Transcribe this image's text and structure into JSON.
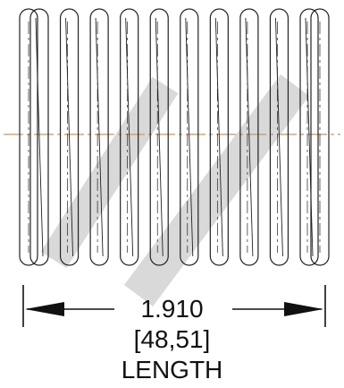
{
  "spring": {
    "coil_count": 10,
    "wire_color": "#222222",
    "centerline_color": "#c8946a",
    "watermark_color": "#d9d9d9"
  },
  "dimension": {
    "value": "1.910",
    "metric": "[48,51]",
    "label": "LENGTH"
  }
}
